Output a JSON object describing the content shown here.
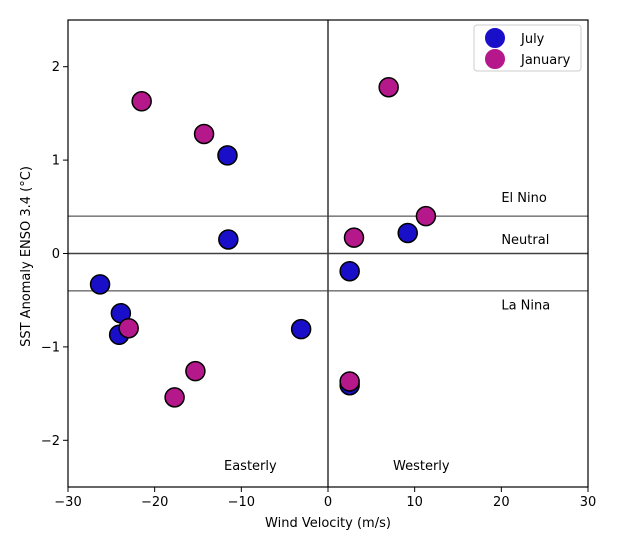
{
  "chart_data": {
    "type": "scatter",
    "xlabel": "Wind Velocity (m/s)",
    "ylabel": "SST Anomaly ENSO 3.4 (°C)",
    "xlim": [
      -30,
      30
    ],
    "ylim": [
      -2.5,
      2.5
    ],
    "xticks": [
      -30,
      -20,
      -10,
      0,
      10,
      20,
      30
    ],
    "yticks": [
      -2,
      -1,
      0,
      1,
      2
    ],
    "xtick_labels": [
      "−30",
      "−20",
      "−10",
      "0",
      "10",
      "20",
      "30"
    ],
    "ytick_labels": [
      "−2",
      "−1",
      "0",
      "1",
      "2"
    ],
    "grid": false,
    "legend_position": "top-right",
    "series": [
      {
        "name": "July",
        "color": "#1a0fc9",
        "points": [
          {
            "x": -26.3,
            "y": -0.33
          },
          {
            "x": -23.9,
            "y": -0.64
          },
          {
            "x": -24.1,
            "y": -0.87
          },
          {
            "x": -11.6,
            "y": 1.05
          },
          {
            "x": -11.5,
            "y": 0.15
          },
          {
            "x": -3.1,
            "y": -0.81
          },
          {
            "x": 2.5,
            "y": -0.19
          },
          {
            "x": 2.5,
            "y": -1.41
          },
          {
            "x": 9.2,
            "y": 0.22
          }
        ]
      },
      {
        "name": "January",
        "color": "#b5188b",
        "points": [
          {
            "x": -21.5,
            "y": 1.63
          },
          {
            "x": -14.3,
            "y": 1.28
          },
          {
            "x": -23.0,
            "y": -0.8
          },
          {
            "x": -15.3,
            "y": -1.26
          },
          {
            "x": -17.7,
            "y": -1.54
          },
          {
            "x": 2.5,
            "y": -1.37
          },
          {
            "x": 3.0,
            "y": 0.17
          },
          {
            "x": 7.0,
            "y": 1.78
          },
          {
            "x": 11.3,
            "y": 0.4
          }
        ]
      }
    ],
    "reference_lines": {
      "horizontal": [
        {
          "y": 0.4,
          "color": "#808080"
        },
        {
          "y": 0.0,
          "color": "#404040"
        },
        {
          "y": -0.4,
          "color": "#808080"
        }
      ],
      "vertical": [
        {
          "x": 0.0,
          "color": "#404040"
        }
      ]
    },
    "annotations": [
      {
        "text": "El Nino",
        "x": 20,
        "y": 0.55
      },
      {
        "text": "Neutral",
        "x": 20,
        "y": 0.1
      },
      {
        "text": "La Nina",
        "x": 20,
        "y": -0.6
      },
      {
        "text": "Easterly",
        "x": -12,
        "y": -2.32
      },
      {
        "text": "Westerly",
        "x": 7.5,
        "y": -2.32
      }
    ]
  }
}
